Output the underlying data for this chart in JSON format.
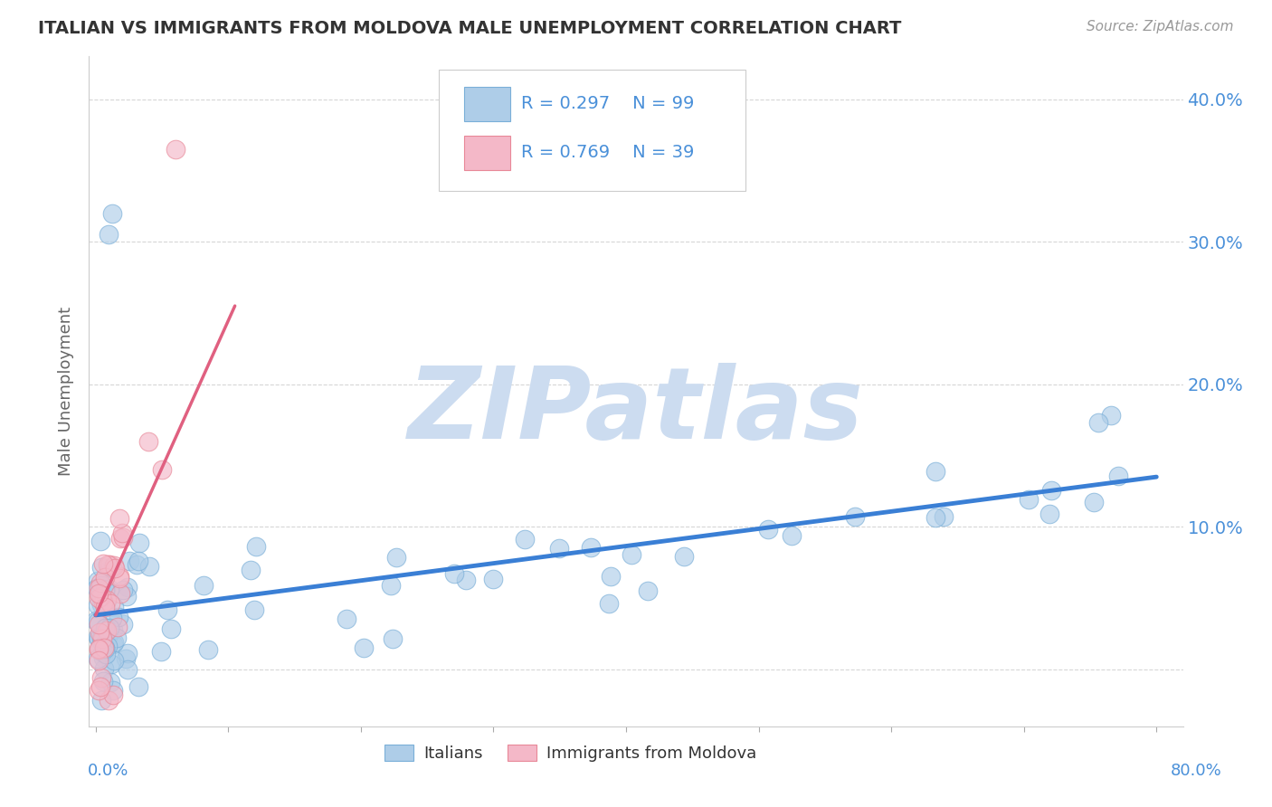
{
  "title": "ITALIAN VS IMMIGRANTS FROM MOLDOVA MALE UNEMPLOYMENT CORRELATION CHART",
  "source": "Source: ZipAtlas.com",
  "ylabel": "Male Unemployment",
  "yticks": [
    0.0,
    0.1,
    0.2,
    0.3,
    0.4
  ],
  "ytick_labels": [
    "",
    "10.0%",
    "20.0%",
    "30.0%",
    "40.0%"
  ],
  "xlim": [
    -0.005,
    0.82
  ],
  "ylim": [
    -0.04,
    0.43
  ],
  "legend_r1": "R = 0.297",
  "legend_n1": "N = 99",
  "legend_r2": "R = 0.769",
  "legend_n2": "N = 39",
  "legend_label1": "Italians",
  "legend_label2": "Immigrants from Moldova",
  "watermark": "ZIPatlas",
  "watermark_color": "#ccdcf0",
  "blue_color": "#3a7fd5",
  "pink_color": "#e06080",
  "blue_scatter_face": "#aecde8",
  "blue_scatter_edge": "#7aafd8",
  "pink_scatter_face": "#f4b8c8",
  "pink_scatter_edge": "#e88898",
  "blue_line_x": [
    0.0,
    0.8
  ],
  "blue_line_y": [
    0.038,
    0.135
  ],
  "pink_line_x": [
    0.0,
    0.105
  ],
  "pink_line_y": [
    0.038,
    0.255
  ],
  "grid_color": "#cccccc",
  "background_color": "#ffffff",
  "title_color": "#333333",
  "axis_label_color": "#666666",
  "tick_color": "#4a90d9",
  "right_ytick_color": "#4a90d9"
}
